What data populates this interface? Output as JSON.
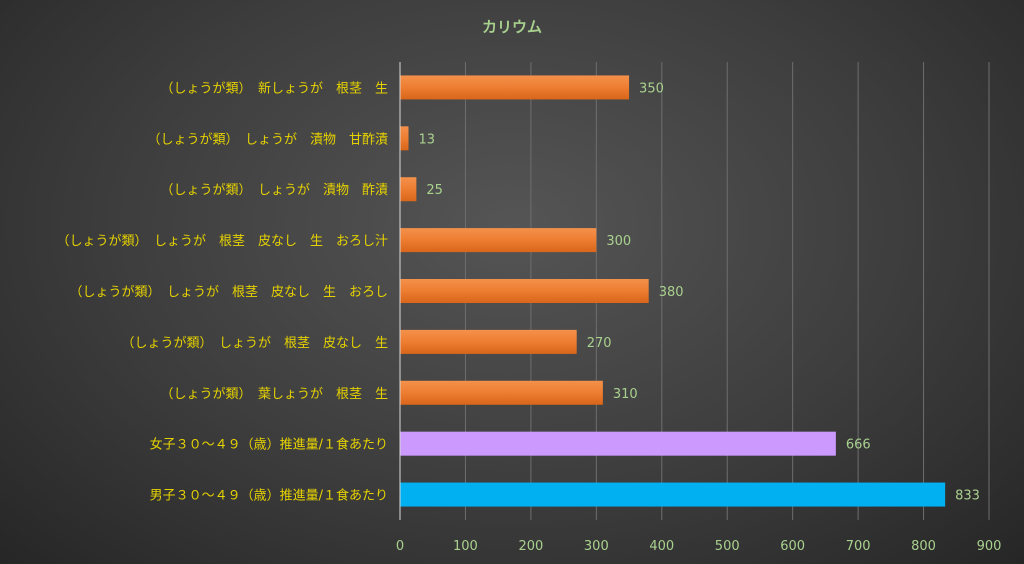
{
  "chart_data": {
    "type": "bar",
    "orientation": "horizontal",
    "title": "カリウム",
    "categories": [
      "（しょうが類）　新しょうが　根茎　生",
      "（しょうが類）　しょうが　漬物　甘酢漬",
      "（しょうが類）　しょうが　漬物　酢漬",
      "（しょうが類）　しょうが　根茎　皮なし　生　おろし汁",
      "（しょうが類）　しょうが　根茎　皮なし　生　おろし",
      "（しょうが類）　しょうが　根茎　皮なし　生",
      "（しょうが類）　葉しょうが　根茎　生",
      "女子３０～４９（歳）推進量/１食あたり",
      "男子３０～４９（歳）推進量/１食あたり"
    ],
    "values": [
      350,
      13,
      25,
      300,
      380,
      270,
      310,
      666,
      833
    ],
    "data_labels": [
      "350",
      "13",
      "25",
      "300",
      "380",
      "270",
      "310",
      "666",
      "833"
    ],
    "bar_colors": [
      "#ed7d31",
      "#ed7d31",
      "#ed7d31",
      "#ed7d31",
      "#ed7d31",
      "#ed7d31",
      "#ed7d31",
      "#cc99ff",
      "#00b0f0"
    ],
    "xlim": [
      0,
      900
    ],
    "xticks": [
      0,
      100,
      200,
      300,
      400,
      500,
      600,
      700,
      800,
      900
    ],
    "xtick_labels": [
      "0",
      "100",
      "200",
      "300",
      "400",
      "500",
      "600",
      "700",
      "800",
      "900"
    ],
    "grid": true,
    "legend": "none"
  }
}
